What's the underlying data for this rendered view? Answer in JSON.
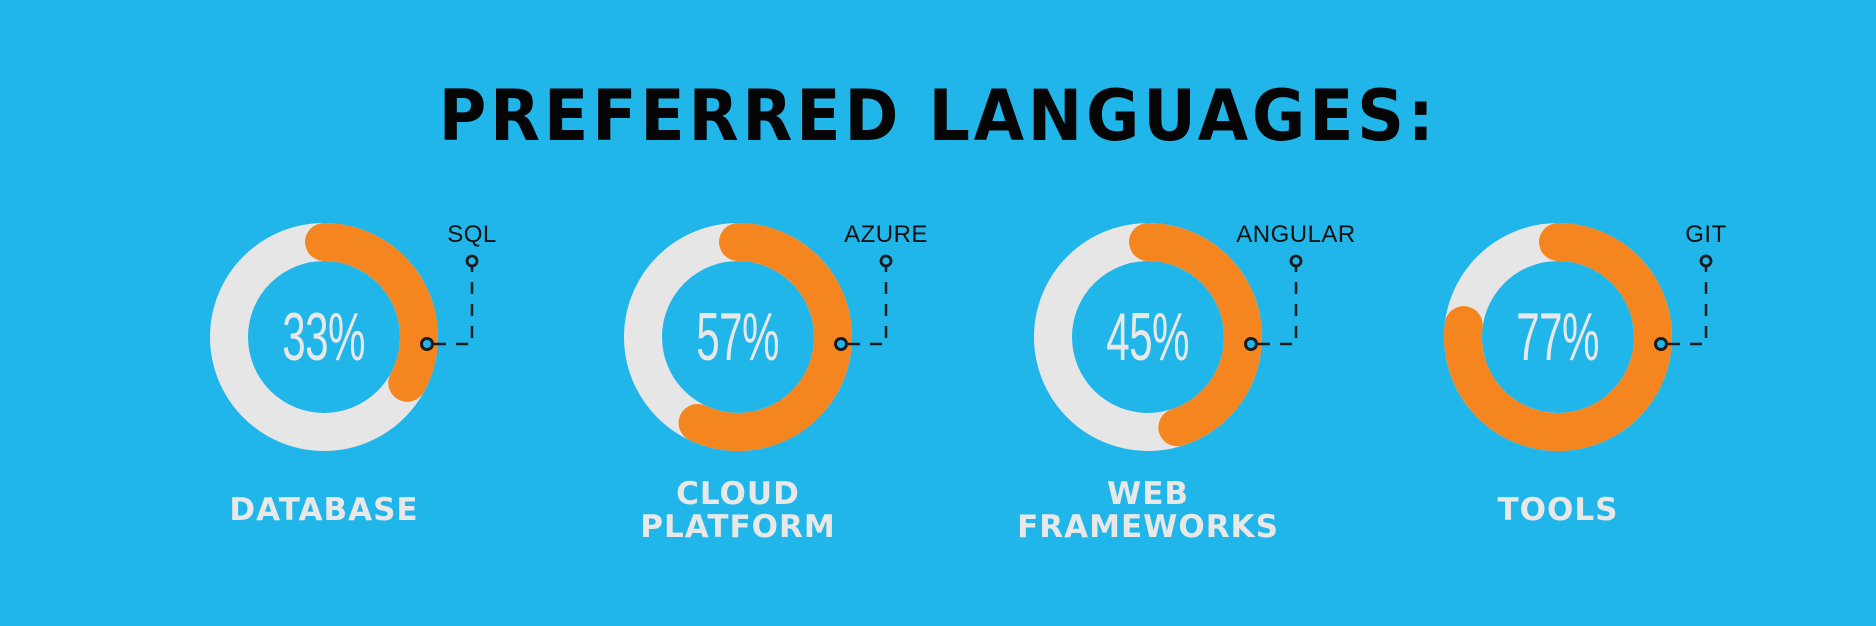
{
  "title": "PREFERRED LANGUAGES:",
  "colors": {
    "background": "#21B6EA",
    "filled": "#F5851F",
    "remaining": "#E6E6E6",
    "percent_text": "#E8E8E8",
    "category_text": "#E8E8E8",
    "callout": "#1A1A1A"
  },
  "donuts": [
    {
      "category_line1": "DATABASE",
      "category_line2": "",
      "percent_label": "33%",
      "value": 33,
      "callout": "SQL"
    },
    {
      "category_line1": "CLOUD",
      "category_line2": "PLATFORM",
      "percent_label": "57%",
      "value": 57,
      "callout": "AZURE"
    },
    {
      "category_line1": "WEB",
      "category_line2": "FRAMEWORKS",
      "percent_label": "45%",
      "value": 45,
      "callout": "ANGULAR"
    },
    {
      "category_line1": "TOOLS",
      "category_line2": "",
      "percent_label": "77%",
      "value": 77,
      "callout": "GIT"
    }
  ],
  "chart_data": {
    "type": "pie",
    "subtype": "donut",
    "title": "PREFERRED LANGUAGES:",
    "categories": [
      "DATABASE",
      "CLOUD PLATFORM",
      "WEB FRAMEWORKS",
      "TOOLS"
    ],
    "callouts": [
      "SQL",
      "AZURE",
      "ANGULAR",
      "GIT"
    ],
    "values": [
      33,
      57,
      45,
      77
    ],
    "unit": "%",
    "max": 100,
    "legend": "none",
    "grid": false
  }
}
